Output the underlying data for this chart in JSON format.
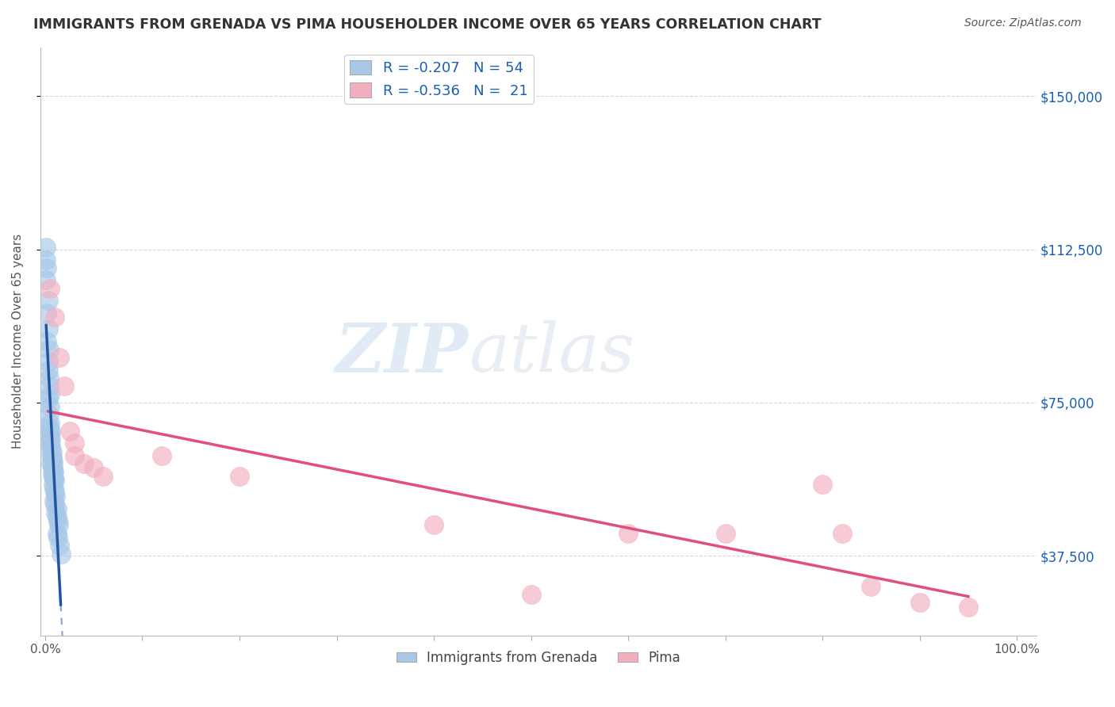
{
  "title": "IMMIGRANTS FROM GRENADA VS PIMA HOUSEHOLDER INCOME OVER 65 YEARS CORRELATION CHART",
  "source": "Source: ZipAtlas.com",
  "ylabel": "Householder Income Over 65 years",
  "ytick_labels": [
    "$150,000",
    "$112,500",
    "$75,000",
    "$37,500"
  ],
  "ytick_values": [
    150000,
    112500,
    75000,
    37500
  ],
  "ymax": 162000,
  "ymin": 18000,
  "xmin": -0.005,
  "xmax": 1.02,
  "legend_labels": [
    "Immigrants from Grenada",
    "Pima"
  ],
  "blue_R": -0.207,
  "blue_N": 54,
  "pink_R": -0.536,
  "pink_N": 21,
  "blue_color": "#a8c8e8",
  "pink_color": "#f2afc0",
  "blue_line_color": "#2255a0",
  "pink_line_color": "#e0507a",
  "blue_scatter": [
    [
      0.001,
      113000
    ],
    [
      0.001,
      110000
    ],
    [
      0.002,
      108000
    ],
    [
      0.001,
      105000
    ],
    [
      0.003,
      100000
    ],
    [
      0.002,
      97000
    ],
    [
      0.003,
      93000
    ],
    [
      0.002,
      90000
    ],
    [
      0.004,
      88000
    ],
    [
      0.003,
      85000
    ],
    [
      0.003,
      83000
    ],
    [
      0.004,
      81000
    ],
    [
      0.004,
      79000
    ],
    [
      0.005,
      77000
    ],
    [
      0.003,
      76000
    ],
    [
      0.005,
      74000
    ],
    [
      0.004,
      72000
    ],
    [
      0.005,
      70000
    ],
    [
      0.004,
      69000
    ],
    [
      0.006,
      68000
    ],
    [
      0.005,
      67000
    ],
    [
      0.006,
      66000
    ],
    [
      0.005,
      65500
    ],
    [
      0.006,
      64500
    ],
    [
      0.006,
      63500
    ],
    [
      0.007,
      63000
    ],
    [
      0.006,
      62000
    ],
    [
      0.007,
      61500
    ],
    [
      0.007,
      61000
    ],
    [
      0.008,
      60500
    ],
    [
      0.006,
      60000
    ],
    [
      0.007,
      59500
    ],
    [
      0.008,
      59000
    ],
    [
      0.008,
      58500
    ],
    [
      0.009,
      58000
    ],
    [
      0.007,
      57500
    ],
    [
      0.008,
      57000
    ],
    [
      0.009,
      56500
    ],
    [
      0.01,
      56000
    ],
    [
      0.008,
      55000
    ],
    [
      0.009,
      54000
    ],
    [
      0.01,
      53000
    ],
    [
      0.011,
      52000
    ],
    [
      0.009,
      51000
    ],
    [
      0.01,
      50000
    ],
    [
      0.012,
      49000
    ],
    [
      0.011,
      48000
    ],
    [
      0.012,
      47000
    ],
    [
      0.013,
      46000
    ],
    [
      0.014,
      45000
    ],
    [
      0.012,
      43000
    ],
    [
      0.013,
      42000
    ],
    [
      0.015,
      40000
    ],
    [
      0.016,
      38000
    ]
  ],
  "pink_scatter": [
    [
      0.005,
      103000
    ],
    [
      0.01,
      96000
    ],
    [
      0.015,
      86000
    ],
    [
      0.02,
      79000
    ],
    [
      0.025,
      68000
    ],
    [
      0.03,
      65000
    ],
    [
      0.03,
      62000
    ],
    [
      0.04,
      60000
    ],
    [
      0.05,
      59000
    ],
    [
      0.06,
      57000
    ],
    [
      0.12,
      62000
    ],
    [
      0.2,
      57000
    ],
    [
      0.4,
      45000
    ],
    [
      0.5,
      28000
    ],
    [
      0.6,
      43000
    ],
    [
      0.7,
      43000
    ],
    [
      0.8,
      55000
    ],
    [
      0.82,
      43000
    ],
    [
      0.85,
      30000
    ],
    [
      0.9,
      26000
    ],
    [
      0.95,
      25000
    ]
  ],
  "background_color": "#ffffff",
  "grid_color": "#d8d8d8",
  "title_color": "#333333",
  "right_ytick_color": "#1a5fb4",
  "source_color": "#555555"
}
